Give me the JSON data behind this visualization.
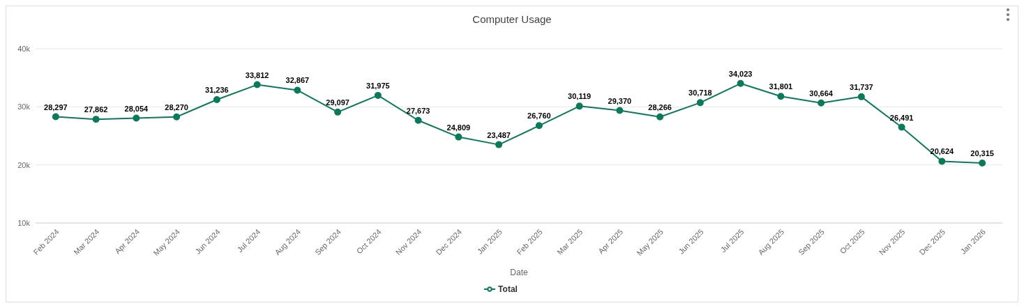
{
  "chart_data": {
    "type": "line",
    "title": "Computer Usage",
    "xlabel": "Date",
    "categories": [
      "Feb 2024",
      "Mar 2024",
      "Apr 2024",
      "May 2024",
      "Jun 2024",
      "Jul 2024",
      "Aug 2024",
      "Sep 2024",
      "Oct 2024",
      "Nov 2024",
      "Dec 2024",
      "Jan 2025",
      "Feb 2025",
      "Mar 2025",
      "Apr 2025",
      "May 2025",
      "Jun 2025",
      "Jul 2025",
      "Aug 2025",
      "Sep 2025",
      "Oct 2025",
      "Nov 2025",
      "Dec 2025",
      "Jan 2026"
    ],
    "series": [
      {
        "name": "Total",
        "color": "#0b7a5a",
        "values": [
          28297,
          27862,
          28054,
          28270,
          31236,
          33812,
          32867,
          29097,
          31975,
          27673,
          24809,
          23487,
          26760,
          30119,
          29370,
          28266,
          30718,
          34023,
          31801,
          30664,
          31737,
          26491,
          20624,
          20315
        ]
      }
    ],
    "ylim": [
      10000,
      40000
    ],
    "yticks": [
      {
        "value": 10000,
        "label": "10k"
      },
      {
        "value": 20000,
        "label": "20k"
      },
      {
        "value": 30000,
        "label": "30k"
      },
      {
        "value": 40000,
        "label": "40k"
      }
    ],
    "value_labels": [
      "28,297",
      "27,862",
      "28,054",
      "28,270",
      "31,236",
      "33,812",
      "32,867",
      "29,097",
      "31,975",
      "27,673",
      "24,809",
      "23,487",
      "26,760",
      "30,119",
      "29,370",
      "28,266",
      "30,718",
      "34,023",
      "31,801",
      "30,664",
      "31,737",
      "26,491",
      "20,624",
      "20,315"
    ],
    "grid": "y",
    "legend": "bottom",
    "marker": "circle",
    "line_style": "solid"
  }
}
